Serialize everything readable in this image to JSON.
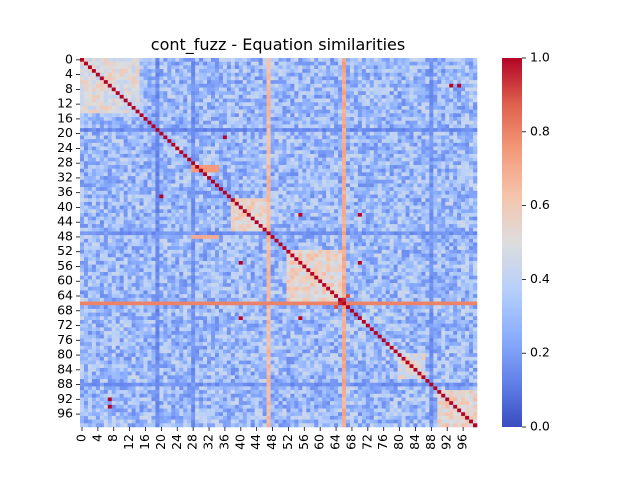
{
  "chart_data": {
    "type": "heatmap",
    "title": "cont_fuzz - Equation similarities",
    "xlabel": "",
    "ylabel": "",
    "n": 100,
    "x_tick_labels": [
      "0",
      "4",
      "8",
      "12",
      "16",
      "20",
      "24",
      "28",
      "32",
      "36",
      "40",
      "44",
      "48",
      "52",
      "56",
      "60",
      "64",
      "68",
      "72",
      "76",
      "80",
      "84",
      "88",
      "92",
      "96"
    ],
    "y_tick_labels": [
      "0",
      "4",
      "8",
      "12",
      "16",
      "20",
      "24",
      "28",
      "32",
      "36",
      "40",
      "44",
      "48",
      "52",
      "56",
      "60",
      "64",
      "68",
      "72",
      "76",
      "80",
      "84",
      "88",
      "92",
      "96"
    ],
    "value_range": [
      0.0,
      1.0
    ],
    "colormap": "coolwarm",
    "colorbar_ticks": [
      "0.0",
      "0.2",
      "0.4",
      "0.6",
      "0.8",
      "1.0"
    ],
    "diagonal_value": 1.0,
    "background_range": [
      0.15,
      0.45
    ],
    "high_similarity_pairs": [
      {
        "i": 21,
        "j": 36,
        "value": 1.0
      },
      {
        "i": 37,
        "j": 20,
        "value": 1.0
      },
      {
        "i": 42,
        "j": 55,
        "value": 1.0
      },
      {
        "i": 42,
        "j": 70,
        "value": 1.0
      },
      {
        "i": 55,
        "j": 40,
        "value": 1.0
      },
      {
        "i": 55,
        "j": 70,
        "value": 1.0
      },
      {
        "i": 70,
        "j": 40,
        "value": 1.0
      },
      {
        "i": 70,
        "j": 55,
        "value": 1.0
      },
      {
        "i": 7,
        "j": 93,
        "value": 1.0
      },
      {
        "i": 7,
        "j": 95,
        "value": 1.0
      },
      {
        "i": 92,
        "j": 7,
        "value": 1.0
      },
      {
        "i": 94,
        "j": 7,
        "value": 1.0
      },
      {
        "i": 66,
        "j": 65,
        "value": 0.95
      },
      {
        "i": 65,
        "j": 66,
        "value": 0.95
      },
      {
        "i": 67,
        "j": 64,
        "value": 0.9
      },
      {
        "i": 64,
        "j": 67,
        "value": 0.9
      }
    ],
    "bright_rows": [
      {
        "index": 29,
        "value": 0.75
      },
      {
        "index": 30,
        "value": 0.75
      },
      {
        "index": 48,
        "value": 0.7
      },
      {
        "index": 66,
        "value": 0.8
      }
    ],
    "bright_columns": [
      {
        "index": 47,
        "value": 0.7
      },
      {
        "index": 66,
        "value": 0.75
      }
    ],
    "dark_rows": [
      {
        "index": 19,
        "value": 0.1
      },
      {
        "index": 47,
        "value": 0.12
      },
      {
        "index": 88,
        "value": 0.12
      }
    ],
    "dark_columns": [
      {
        "index": 19,
        "value": 0.1
      },
      {
        "index": 28,
        "value": 0.12
      },
      {
        "index": 88,
        "value": 0.12
      }
    ],
    "cluster_blocks": [
      {
        "rows": [
          0,
          14
        ],
        "cols": [
          0,
          14
        ],
        "value": 0.55
      },
      {
        "rows": [
          38,
          47
        ],
        "cols": [
          38,
          47
        ],
        "value": 0.6
      },
      {
        "rows": [
          52,
          66
        ],
        "cols": [
          52,
          66
        ],
        "value": 0.6
      },
      {
        "rows": [
          80,
          86
        ],
        "cols": [
          80,
          86
        ],
        "value": 0.55
      },
      {
        "rows": [
          90,
          99
        ],
        "cols": [
          90,
          99
        ],
        "value": 0.6
      }
    ]
  }
}
